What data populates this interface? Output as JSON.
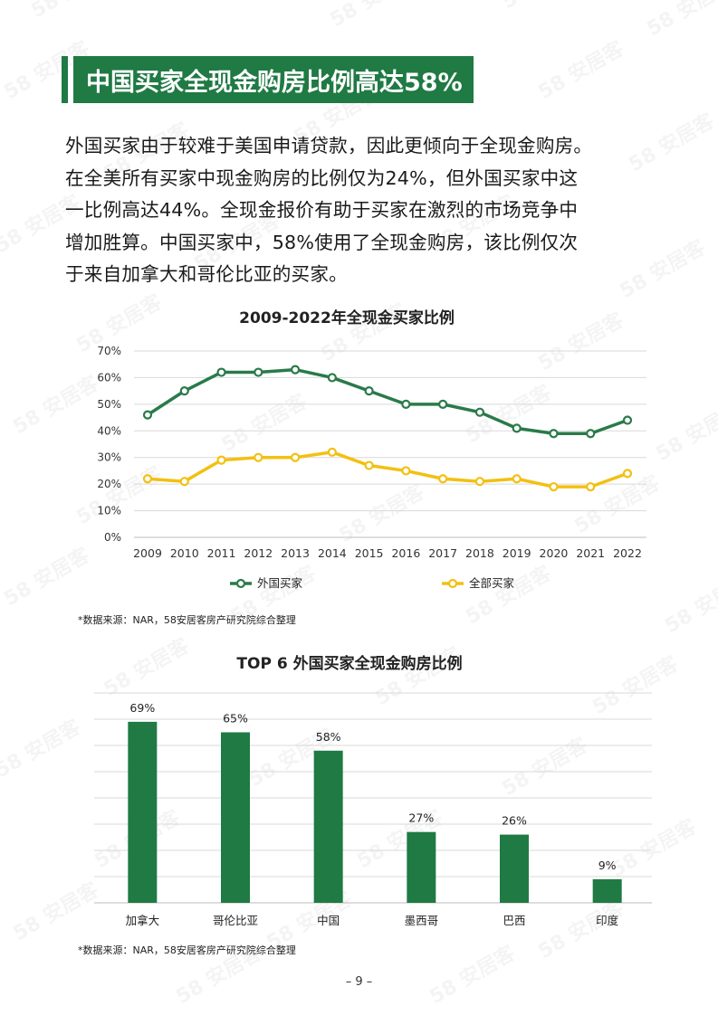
{
  "page": {
    "title": "中国买家全现金购房比例高达58%",
    "intro_lines": [
      "外国买家由于较难于美国申请贷款，因此更倾向于全现金购房。",
      "在全美所有买家中现金购房的比例仅为24%，但外国买家中这",
      "一比例高达44%。全现金报价有助于买家在激烈的市场竞争中",
      "增加胜算。中国买家中，58%使用了全现金购房，该比例仅次",
      "于来自加拿大和哥伦比亚的买家。"
    ],
    "page_number": "– 9 –",
    "watermark_text": "58 安居客"
  },
  "chart_data": [
    {
      "type": "line",
      "title": "2009-2022年全现金买家比例",
      "x": [
        "2009",
        "2010",
        "2011",
        "2012",
        "2013",
        "2014",
        "2015",
        "2016",
        "2017",
        "2018",
        "2019",
        "2020",
        "2021",
        "2022"
      ],
      "y_ticks": [
        "70%",
        "60%",
        "50%",
        "40%",
        "30%",
        "20%",
        "10%",
        "0%"
      ],
      "ylim": [
        0,
        70
      ],
      "grid": true,
      "legend_position": "bottom",
      "series": [
        {
          "name": "外国买家",
          "color": "#2a7a4a",
          "values": [
            46,
            55,
            62,
            62,
            63,
            60,
            55,
            50,
            50,
            47,
            41,
            39,
            39,
            44
          ]
        },
        {
          "name": "全部买家",
          "color": "#f3c012",
          "values": [
            22,
            21,
            29,
            30,
            30,
            32,
            27,
            25,
            22,
            21,
            22,
            19,
            19,
            24
          ]
        }
      ],
      "source": "*数据来源：NAR，58安居客房产研究院综合整理"
    },
    {
      "type": "bar",
      "title": "TOP 6 外国买家全现金购房比例",
      "categories": [
        "加拿大",
        "哥伦比亚",
        "中国",
        "墨西哥",
        "巴西",
        "印度"
      ],
      "values": [
        69,
        65,
        58,
        27,
        26,
        9
      ],
      "value_labels": [
        "69%",
        "65%",
        "58%",
        "27%",
        "26%",
        "9%"
      ],
      "ylim": [
        0,
        80
      ],
      "grid": true,
      "color": "#1f7a44",
      "source": "*数据来源：NAR，58安居客房产研究院综合整理"
    }
  ]
}
